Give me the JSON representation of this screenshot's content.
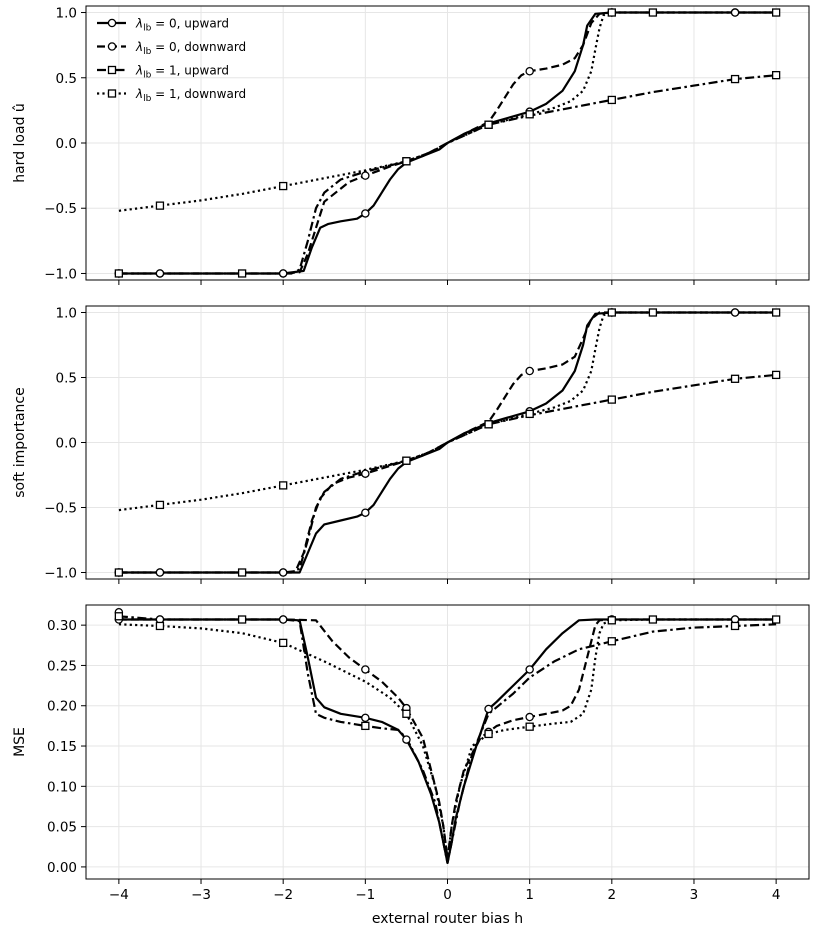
{
  "chart_data": [
    {
      "type": "line",
      "ylabel": "hard load û",
      "xlabel": "",
      "xlim": [
        -4.4,
        4.4
      ],
      "ylim": [
        -1.05,
        1.05
      ],
      "xticks": [
        -4,
        -3,
        -2,
        -1,
        0,
        1,
        2,
        3,
        4
      ],
      "xtick_labels": [
        "",
        "",
        "",
        "",
        "",
        "",
        "",
        "",
        ""
      ],
      "yticks": [
        -1.0,
        -0.5,
        0.0,
        0.5,
        1.0
      ],
      "ytick_labels": [
        "−1.0",
        "−0.5",
        "0.0",
        "0.5",
        "1.0"
      ],
      "grid": true,
      "legend_position": "top-left",
      "series": [
        {
          "name": "λlb = 0, upward",
          "line_style": "solid",
          "marker": "circle",
          "x": [
            -4,
            -3.5,
            -2,
            -1.75,
            -1.65,
            -1.55,
            -1.45,
            -1.3,
            -1.1,
            -1.0,
            -0.9,
            -0.8,
            -0.7,
            -0.6,
            -0.5,
            -0.3,
            -0.1,
            0,
            0.2,
            0.5,
            1.0,
            1.2,
            1.4,
            1.55,
            1.65,
            1.7,
            1.8,
            2.0,
            2.5,
            3.5,
            4.0
          ],
          "y": [
            -1.0,
            -1.0,
            -1.0,
            -0.98,
            -0.8,
            -0.65,
            -0.62,
            -0.6,
            -0.58,
            -0.54,
            -0.48,
            -0.38,
            -0.28,
            -0.2,
            -0.15,
            -0.1,
            -0.05,
            0.0,
            0.07,
            0.15,
            0.24,
            0.3,
            0.4,
            0.55,
            0.75,
            0.9,
            0.99,
            1.0,
            1.0,
            1.0,
            1.0
          ],
          "marker_x": [
            -4,
            -3.5,
            -2,
            -1,
            1,
            2,
            3.5
          ]
        },
        {
          "name": "λlb = 0, downward",
          "line_style": "dashed",
          "marker": "circle",
          "x": [
            -4,
            -3.5,
            -2,
            -1.8,
            -1.7,
            -1.6,
            -1.5,
            -1.2,
            -1.0,
            -0.7,
            -0.5,
            -0.3,
            0,
            0.3,
            0.5,
            0.6,
            0.7,
            0.8,
            0.9,
            1.0,
            1.2,
            1.4,
            1.55,
            1.65,
            1.75,
            1.85,
            2.0,
            2.5,
            3.5,
            4.0
          ],
          "y": [
            -1.0,
            -1.0,
            -1.0,
            -0.99,
            -0.85,
            -0.65,
            -0.45,
            -0.3,
            -0.25,
            -0.18,
            -0.14,
            -0.1,
            0.0,
            0.1,
            0.16,
            0.25,
            0.35,
            0.45,
            0.52,
            0.55,
            0.57,
            0.6,
            0.65,
            0.75,
            0.92,
            0.99,
            1.0,
            1.0,
            1.0,
            1.0
          ],
          "marker_x": [
            -4,
            -3.5,
            -2,
            -1,
            1,
            2,
            3.5
          ]
        },
        {
          "name": "λlb = 1, upward",
          "line_style": "dashdot",
          "marker": "square",
          "x": [
            -4,
            -3.5,
            -2.5,
            -2,
            -1.9,
            -1.8,
            -1.7,
            -1.6,
            -1.5,
            -1.3,
            -1.0,
            -0.5,
            -0.2,
            0,
            0.5,
            1.0,
            1.5,
            2.0,
            2.5,
            3.0,
            3.5,
            4.0
          ],
          "y": [
            -1.0,
            -1.0,
            -1.0,
            -1.0,
            -1.0,
            -0.97,
            -0.75,
            -0.5,
            -0.38,
            -0.28,
            -0.22,
            -0.14,
            -0.07,
            0.0,
            0.14,
            0.21,
            0.27,
            0.33,
            0.39,
            0.44,
            0.49,
            0.52
          ],
          "marker_x": [
            -4,
            -2.5,
            -0.5,
            0.5,
            2,
            3.5,
            4
          ]
        },
        {
          "name": "λlb = 1, downward",
          "line_style": "dotted",
          "marker": "square",
          "x": [
            -4,
            -3.5,
            -3.0,
            -2.5,
            -2.0,
            -1.5,
            -1.0,
            -0.5,
            -0.2,
            0,
            0.5,
            1.0,
            1.3,
            1.5,
            1.65,
            1.75,
            1.8,
            1.85,
            1.9,
            2.0,
            2.5,
            3.5,
            4.0
          ],
          "y": [
            -0.52,
            -0.48,
            -0.44,
            -0.39,
            -0.33,
            -0.27,
            -0.21,
            -0.14,
            -0.07,
            0.0,
            0.14,
            0.22,
            0.27,
            0.32,
            0.4,
            0.55,
            0.72,
            0.88,
            0.98,
            1.0,
            1.0,
            1.0,
            1.0
          ],
          "marker_x": [
            -3.5,
            -2,
            -0.5,
            0.5,
            1,
            2,
            2.5,
            4
          ]
        }
      ]
    },
    {
      "type": "line",
      "ylabel": "soft importance",
      "xlabel": "",
      "xlim": [
        -4.4,
        4.4
      ],
      "ylim": [
        -1.05,
        1.05
      ],
      "xticks": [
        -4,
        -3,
        -2,
        -1,
        0,
        1,
        2,
        3,
        4
      ],
      "xtick_labels": [
        "",
        "",
        "",
        "",
        "",
        "",
        "",
        "",
        ""
      ],
      "yticks": [
        -1.0,
        -0.5,
        0.0,
        0.5,
        1.0
      ],
      "ytick_labels": [
        "−1.0",
        "−0.5",
        "0.0",
        "0.5",
        "1.0"
      ],
      "grid": true,
      "series": [
        {
          "name": "λlb = 0, upward",
          "line_style": "solid",
          "marker": "circle",
          "x": [
            -4,
            -3.5,
            -2,
            -1.8,
            -1.7,
            -1.6,
            -1.5,
            -1.3,
            -1.1,
            -1.0,
            -0.9,
            -0.8,
            -0.7,
            -0.6,
            -0.5,
            -0.3,
            -0.1,
            0,
            0.2,
            0.5,
            1.0,
            1.2,
            1.4,
            1.55,
            1.65,
            1.7,
            1.8,
            2.0,
            2.5,
            3.5,
            4.0
          ],
          "y": [
            -1.0,
            -1.0,
            -1.0,
            -1.0,
            -0.85,
            -0.7,
            -0.63,
            -0.6,
            -0.57,
            -0.54,
            -0.48,
            -0.38,
            -0.28,
            -0.2,
            -0.15,
            -0.1,
            -0.05,
            0.0,
            0.07,
            0.15,
            0.24,
            0.3,
            0.4,
            0.55,
            0.75,
            0.9,
            0.99,
            1.0,
            1.0,
            1.0,
            1.0
          ],
          "marker_x": [
            -4,
            -3.5,
            -2,
            -1,
            1,
            2,
            3.5
          ]
        },
        {
          "name": "λlb = 0, downward",
          "line_style": "dashed",
          "marker": "circle",
          "x": [
            -4,
            -3.5,
            -2,
            -1.85,
            -1.75,
            -1.65,
            -1.55,
            -1.4,
            -1.2,
            -1.0,
            -0.7,
            -0.5,
            -0.3,
            0,
            0.3,
            0.5,
            0.6,
            0.7,
            0.8,
            0.9,
            1.0,
            1.2,
            1.4,
            1.55,
            1.65,
            1.75,
            1.85,
            2.0,
            2.5,
            3.5,
            4.0
          ],
          "y": [
            -1.0,
            -1.0,
            -1.0,
            -0.99,
            -0.85,
            -0.6,
            -0.43,
            -0.32,
            -0.27,
            -0.24,
            -0.18,
            -0.14,
            -0.1,
            0.0,
            0.1,
            0.16,
            0.25,
            0.35,
            0.45,
            0.52,
            0.55,
            0.57,
            0.6,
            0.66,
            0.8,
            0.95,
            1.0,
            1.0,
            1.0,
            1.0,
            1.0
          ],
          "marker_x": [
            -4,
            -3.5,
            -2,
            -1,
            1,
            2,
            3.5
          ]
        },
        {
          "name": "λlb = 1, upward",
          "line_style": "dashdot",
          "marker": "square",
          "x": [
            -4,
            -3.5,
            -2.5,
            -2,
            -1.9,
            -1.8,
            -1.7,
            -1.6,
            -1.5,
            -1.3,
            -1.0,
            -0.5,
            -0.2,
            0,
            0.5,
            1.0,
            1.5,
            2.0,
            2.5,
            3.0,
            3.5,
            4.0
          ],
          "y": [
            -1.0,
            -1.0,
            -1.0,
            -1.0,
            -1.0,
            -0.97,
            -0.75,
            -0.5,
            -0.38,
            -0.28,
            -0.22,
            -0.14,
            -0.07,
            0.0,
            0.14,
            0.21,
            0.27,
            0.33,
            0.39,
            0.44,
            0.49,
            0.52
          ],
          "marker_x": [
            -4,
            -2.5,
            -0.5,
            0.5,
            2,
            3.5,
            4
          ]
        },
        {
          "name": "λlb = 1, downward",
          "line_style": "dotted",
          "marker": "square",
          "x": [
            -4,
            -3.5,
            -3.0,
            -2.5,
            -2.0,
            -1.5,
            -1.0,
            -0.5,
            -0.2,
            0,
            0.5,
            1.0,
            1.3,
            1.5,
            1.65,
            1.75,
            1.8,
            1.85,
            1.9,
            2.0,
            2.5,
            3.5,
            4.0
          ],
          "y": [
            -0.52,
            -0.48,
            -0.44,
            -0.39,
            -0.33,
            -0.27,
            -0.21,
            -0.14,
            -0.07,
            0.0,
            0.14,
            0.22,
            0.27,
            0.32,
            0.4,
            0.55,
            0.72,
            0.88,
            0.98,
            1.0,
            1.0,
            1.0,
            1.0
          ],
          "marker_x": [
            -3.5,
            -2,
            -0.5,
            0.5,
            1,
            2,
            2.5,
            4
          ]
        }
      ]
    },
    {
      "type": "line",
      "ylabel": "MSE",
      "xlabel": "external router bias h",
      "xlim": [
        -4.4,
        4.4
      ],
      "ylim": [
        -0.015,
        0.325
      ],
      "xticks": [
        -4,
        -3,
        -2,
        -1,
        0,
        1,
        2,
        3,
        4
      ],
      "xtick_labels": [
        "−4",
        "−3",
        "−2",
        "−1",
        "0",
        "1",
        "2",
        "3",
        "4"
      ],
      "yticks": [
        0.0,
        0.05,
        0.1,
        0.15,
        0.2,
        0.25,
        0.3
      ],
      "ytick_labels": [
        "0.00",
        "0.05",
        "0.10",
        "0.15",
        "0.20",
        "0.25",
        "0.30"
      ],
      "grid": true,
      "series": [
        {
          "name": "λlb = 0, upward",
          "line_style": "solid",
          "marker": "circle",
          "x": [
            -4,
            -3.95,
            -3.5,
            -2,
            -1.8,
            -1.7,
            -1.6,
            -1.5,
            -1.3,
            -1.0,
            -0.8,
            -0.6,
            -0.5,
            -0.35,
            -0.2,
            -0.1,
            -0.05,
            0,
            0.05,
            0.1,
            0.2,
            0.35,
            0.5,
            0.6,
            0.8,
            1.0,
            1.2,
            1.4,
            1.6,
            1.8,
            2.0,
            2.5,
            3.5,
            4.0
          ],
          "y": [
            0.316,
            0.307,
            0.307,
            0.307,
            0.306,
            0.26,
            0.21,
            0.198,
            0.19,
            0.185,
            0.18,
            0.17,
            0.158,
            0.13,
            0.09,
            0.055,
            0.03,
            0.005,
            0.03,
            0.06,
            0.1,
            0.15,
            0.196,
            0.205,
            0.225,
            0.245,
            0.27,
            0.29,
            0.306,
            0.307,
            0.307,
            0.307,
            0.307,
            0.307
          ],
          "marker_x": [
            -4,
            -3.5,
            -2,
            -1,
            -0.5,
            0.5,
            1,
            2,
            3.5
          ]
        },
        {
          "name": "λlb = 0, downward",
          "line_style": "dashed",
          "marker": "circle",
          "x": [
            -4,
            -3.5,
            -2,
            -1.6,
            -1.4,
            -1.2,
            -1.0,
            -0.8,
            -0.6,
            -0.5,
            -0.3,
            -0.2,
            -0.1,
            -0.05,
            0,
            0.05,
            0.1,
            0.2,
            0.4,
            0.6,
            0.8,
            1.0,
            1.2,
            1.4,
            1.5,
            1.6,
            1.7,
            1.8,
            1.85,
            2.0,
            2.5,
            3.5,
            4.0
          ],
          "y": [
            0.307,
            0.307,
            0.307,
            0.306,
            0.28,
            0.26,
            0.245,
            0.23,
            0.21,
            0.197,
            0.16,
            0.12,
            0.08,
            0.05,
            0.01,
            0.05,
            0.08,
            0.12,
            0.16,
            0.175,
            0.182,
            0.186,
            0.19,
            0.194,
            0.2,
            0.22,
            0.26,
            0.3,
            0.306,
            0.307,
            0.307,
            0.307,
            0.307
          ],
          "marker_x": [
            -4,
            -3.5,
            -2,
            -1,
            -0.5,
            0.5,
            1,
            2,
            3.5
          ]
        },
        {
          "name": "λlb = 1, upward",
          "line_style": "dashdot",
          "marker": "square",
          "x": [
            -4,
            -3.5,
            -2.5,
            -2,
            -1.8,
            -1.7,
            -1.6,
            -1.5,
            -1.3,
            -1.0,
            -0.8,
            -0.6,
            -0.5,
            -0.3,
            -0.15,
            -0.05,
            0,
            0.05,
            0.15,
            0.3,
            0.5,
            0.8,
            1.0,
            1.3,
            1.6,
            2.0,
            2.5,
            3.0,
            3.5,
            4.0
          ],
          "y": [
            0.311,
            0.307,
            0.307,
            0.307,
            0.305,
            0.24,
            0.19,
            0.185,
            0.18,
            0.175,
            0.172,
            0.17,
            0.16,
            0.12,
            0.08,
            0.03,
            0.005,
            0.03,
            0.08,
            0.14,
            0.19,
            0.215,
            0.235,
            0.255,
            0.27,
            0.28,
            0.292,
            0.297,
            0.299,
            0.301
          ],
          "marker_x": [
            -4,
            -2.5,
            -1,
            2,
            3.5
          ]
        },
        {
          "name": "λlb = 1, downward",
          "line_style": "dotted",
          "marker": "square",
          "x": [
            -4,
            -3.5,
            -3.0,
            -2.5,
            -2.0,
            -1.5,
            -1.0,
            -0.7,
            -0.5,
            -0.3,
            -0.15,
            -0.05,
            0,
            0.05,
            0.15,
            0.3,
            0.5,
            0.7,
            1.0,
            1.3,
            1.5,
            1.65,
            1.75,
            1.8,
            1.85,
            1.9,
            2.0,
            2.5,
            3.5,
            4.0
          ],
          "y": [
            0.301,
            0.299,
            0.296,
            0.29,
            0.278,
            0.255,
            0.23,
            0.21,
            0.19,
            0.15,
            0.1,
            0.05,
            0.01,
            0.05,
            0.1,
            0.15,
            0.165,
            0.17,
            0.174,
            0.178,
            0.18,
            0.19,
            0.22,
            0.26,
            0.29,
            0.302,
            0.306,
            0.307,
            0.307,
            0.307
          ],
          "marker_x": [
            -3.5,
            -2,
            -0.5,
            0.5,
            1,
            2,
            2.5,
            4
          ]
        }
      ]
    }
  ],
  "legend": {
    "entries": [
      {
        "base": "λ",
        "sub": "lb",
        "rest": " = 0, upward",
        "line_style": "solid",
        "marker": "circle"
      },
      {
        "base": "λ",
        "sub": "lb",
        "rest": " = 0, downward",
        "line_style": "dashed",
        "marker": "circle"
      },
      {
        "base": "λ",
        "sub": "lb",
        "rest": " = 1, upward",
        "line_style": "dashdot",
        "marker": "square"
      },
      {
        "base": "λ",
        "sub": "lb",
        "rest": " = 1, downward",
        "line_style": "dotted",
        "marker": "square"
      }
    ]
  }
}
